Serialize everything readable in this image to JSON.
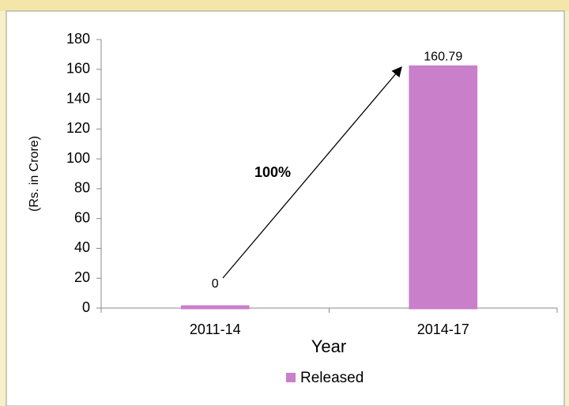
{
  "chart_data": {
    "type": "bar",
    "categories": [
      "2011-14",
      "2014-17"
    ],
    "values": [
      0,
      160.79
    ],
    "value_labels": [
      "0",
      "160.79"
    ],
    "color": "#c97fc9",
    "ylim": [
      0,
      180
    ],
    "yticks": [
      0,
      20,
      40,
      60,
      80,
      100,
      120,
      140,
      160,
      180
    ],
    "x_label": "Year",
    "y_label": "(Rs. in Crore)",
    "annotation": "100%",
    "legend": "Released",
    "grid": false
  }
}
